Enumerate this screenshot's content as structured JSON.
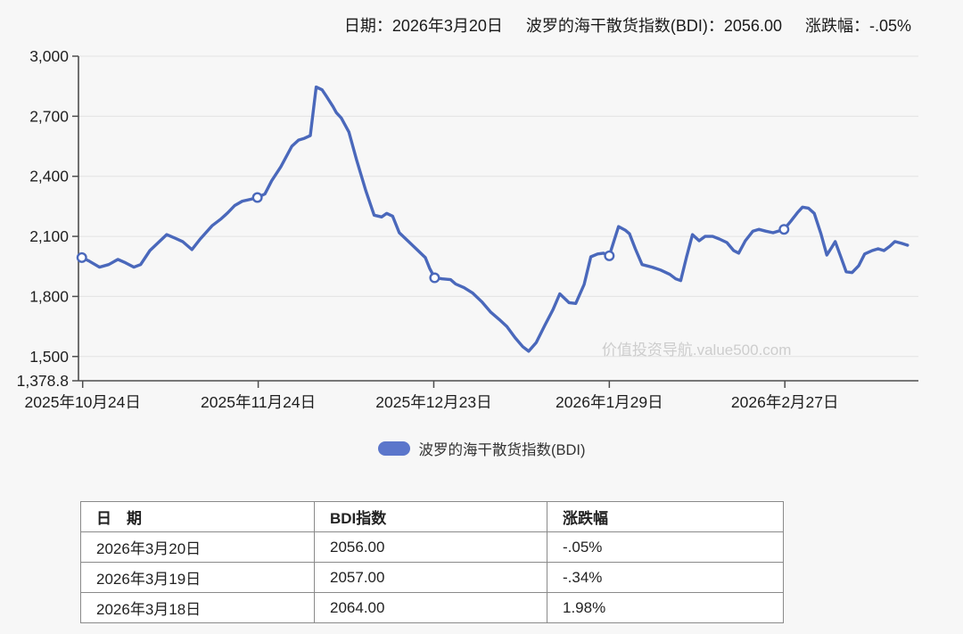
{
  "header": {
    "date_label": "日期：2026年3月20日",
    "index_label": "波罗的海干散货指数(BDI)：2056.00",
    "change_label": "涨跌幅：-.05%"
  },
  "legend": {
    "label": "波罗的海干散货指数(BDI)"
  },
  "watermark": "价值投资导航.value500.com",
  "colors": {
    "line": "#4a68bb",
    "legend_swatch": "#5b76cb",
    "grid": "#e3e3e3",
    "axis": "#4d4d4d",
    "marker_fill": "#ffffff",
    "watermark": "#cdcdcd",
    "background": "#f7f7f7"
  },
  "chart_data": {
    "type": "line",
    "title": "波罗的海干散货指数(BDI)",
    "xlabel": "",
    "ylabel": "",
    "grid": true,
    "legend_position": "bottom",
    "ylim": [
      1378.8,
      3000
    ],
    "y_ticks": [
      {
        "label": "3,000",
        "value": 3000
      },
      {
        "label": "2,700",
        "value": 2700
      },
      {
        "label": "2,400",
        "value": 2400
      },
      {
        "label": "2,100",
        "value": 2100
      },
      {
        "label": "1,800",
        "value": 1800
      },
      {
        "label": "1,500",
        "value": 1500
      },
      {
        "label": "1,378.8",
        "value": 1378.8
      }
    ],
    "x_ticks": [
      {
        "label": "2025年10月24日",
        "pos": 0.005
      },
      {
        "label": "2025年11月24日",
        "pos": 0.214
      },
      {
        "label": "2025年12月23日",
        "pos": 0.423
      },
      {
        "label": "2026年1月29日",
        "pos": 0.632
      },
      {
        "label": "2026年2月27日",
        "pos": 0.841
      }
    ],
    "series": [
      {
        "name": "波罗的海干散货指数(BDI)",
        "color": "#4a68bb",
        "last_value": 2056.0,
        "marker_indices": [
          0,
          20,
          46,
          69,
          96
        ],
        "points": [
          [
            0.004,
            1994
          ],
          [
            0.013,
            1976
          ],
          [
            0.025,
            1946
          ],
          [
            0.036,
            1959
          ],
          [
            0.047,
            1985
          ],
          [
            0.056,
            1968
          ],
          [
            0.066,
            1946
          ],
          [
            0.074,
            1959
          ],
          [
            0.085,
            2029
          ],
          [
            0.105,
            2109
          ],
          [
            0.115,
            2091
          ],
          [
            0.124,
            2074
          ],
          [
            0.135,
            2034
          ],
          [
            0.145,
            2087
          ],
          [
            0.159,
            2153
          ],
          [
            0.17,
            2188
          ],
          [
            0.177,
            2215
          ],
          [
            0.186,
            2254
          ],
          [
            0.195,
            2276
          ],
          [
            0.205,
            2285
          ],
          [
            0.213,
            2294
          ],
          [
            0.222,
            2312
          ],
          [
            0.23,
            2378
          ],
          [
            0.241,
            2448
          ],
          [
            0.254,
            2550
          ],
          [
            0.262,
            2581
          ],
          [
            0.269,
            2590
          ],
          [
            0.276,
            2603
          ],
          [
            0.283,
            2846
          ],
          [
            0.29,
            2832
          ],
          [
            0.295,
            2801
          ],
          [
            0.303,
            2749
          ],
          [
            0.307,
            2718
          ],
          [
            0.313,
            2691
          ],
          [
            0.322,
            2621
          ],
          [
            0.331,
            2484
          ],
          [
            0.342,
            2329
          ],
          [
            0.352,
            2206
          ],
          [
            0.361,
            2197
          ],
          [
            0.367,
            2215
          ],
          [
            0.374,
            2201
          ],
          [
            0.382,
            2118
          ],
          [
            0.393,
            2074
          ],
          [
            0.403,
            2034
          ],
          [
            0.413,
            1994
          ],
          [
            0.418,
            1941
          ],
          [
            0.424,
            1893
          ],
          [
            0.433,
            1888
          ],
          [
            0.443,
            1884
          ],
          [
            0.449,
            1862
          ],
          [
            0.459,
            1844
          ],
          [
            0.469,
            1818
          ],
          [
            0.48,
            1774
          ],
          [
            0.491,
            1721
          ],
          [
            0.501,
            1685
          ],
          [
            0.51,
            1650
          ],
          [
            0.52,
            1593
          ],
          [
            0.529,
            1549
          ],
          [
            0.536,
            1526
          ],
          [
            0.545,
            1570
          ],
          [
            0.555,
            1654
          ],
          [
            0.565,
            1734
          ],
          [
            0.573,
            1813
          ],
          [
            0.584,
            1769
          ],
          [
            0.592,
            1765
          ],
          [
            0.602,
            1860
          ],
          [
            0.61,
            1998
          ],
          [
            0.618,
            2012
          ],
          [
            0.625,
            2016
          ],
          [
            0.632,
            2003
          ],
          [
            0.639,
            2096
          ],
          [
            0.643,
            2149
          ],
          [
            0.651,
            2131
          ],
          [
            0.656,
            2113
          ],
          [
            0.663,
            2038
          ],
          [
            0.671,
            1959
          ],
          [
            0.683,
            1946
          ],
          [
            0.693,
            1932
          ],
          [
            0.704,
            1910
          ],
          [
            0.711,
            1888
          ],
          [
            0.717,
            1879
          ],
          [
            0.724,
            1998
          ],
          [
            0.731,
            2109
          ],
          [
            0.739,
            2078
          ],
          [
            0.746,
            2100
          ],
          [
            0.755,
            2100
          ],
          [
            0.763,
            2087
          ],
          [
            0.772,
            2069
          ],
          [
            0.78,
            2029
          ],
          [
            0.786,
            2016
          ],
          [
            0.794,
            2078
          ],
          [
            0.803,
            2126
          ],
          [
            0.81,
            2135
          ],
          [
            0.818,
            2126
          ],
          [
            0.827,
            2118
          ],
          [
            0.833,
            2126
          ],
          [
            0.84,
            2135
          ],
          [
            0.848,
            2175
          ],
          [
            0.856,
            2219
          ],
          [
            0.862,
            2246
          ],
          [
            0.869,
            2241
          ],
          [
            0.876,
            2215
          ],
          [
            0.884,
            2113
          ],
          [
            0.891,
            2007
          ],
          [
            0.897,
            2047
          ],
          [
            0.901,
            2074
          ],
          [
            0.908,
            1994
          ],
          [
            0.914,
            1923
          ],
          [
            0.921,
            1919
          ],
          [
            0.929,
            1954
          ],
          [
            0.936,
            2012
          ],
          [
            0.945,
            2029
          ],
          [
            0.952,
            2038
          ],
          [
            0.959,
            2029
          ],
          [
            0.966,
            2051
          ],
          [
            0.972,
            2074
          ],
          [
            0.98,
            2065
          ],
          [
            0.987,
            2056
          ]
        ]
      }
    ]
  },
  "table": {
    "headers": [
      "日　期",
      "BDI指数",
      "涨跌幅"
    ],
    "rows": [
      {
        "date": "2026年3月20日",
        "bdi": "2056.00",
        "change": "-.05%"
      },
      {
        "date": "2026年3月19日",
        "bdi": "2057.00",
        "change": "-.34%"
      },
      {
        "date": "2026年3月18日",
        "bdi": "2064.00",
        "change": "1.98%"
      }
    ]
  }
}
